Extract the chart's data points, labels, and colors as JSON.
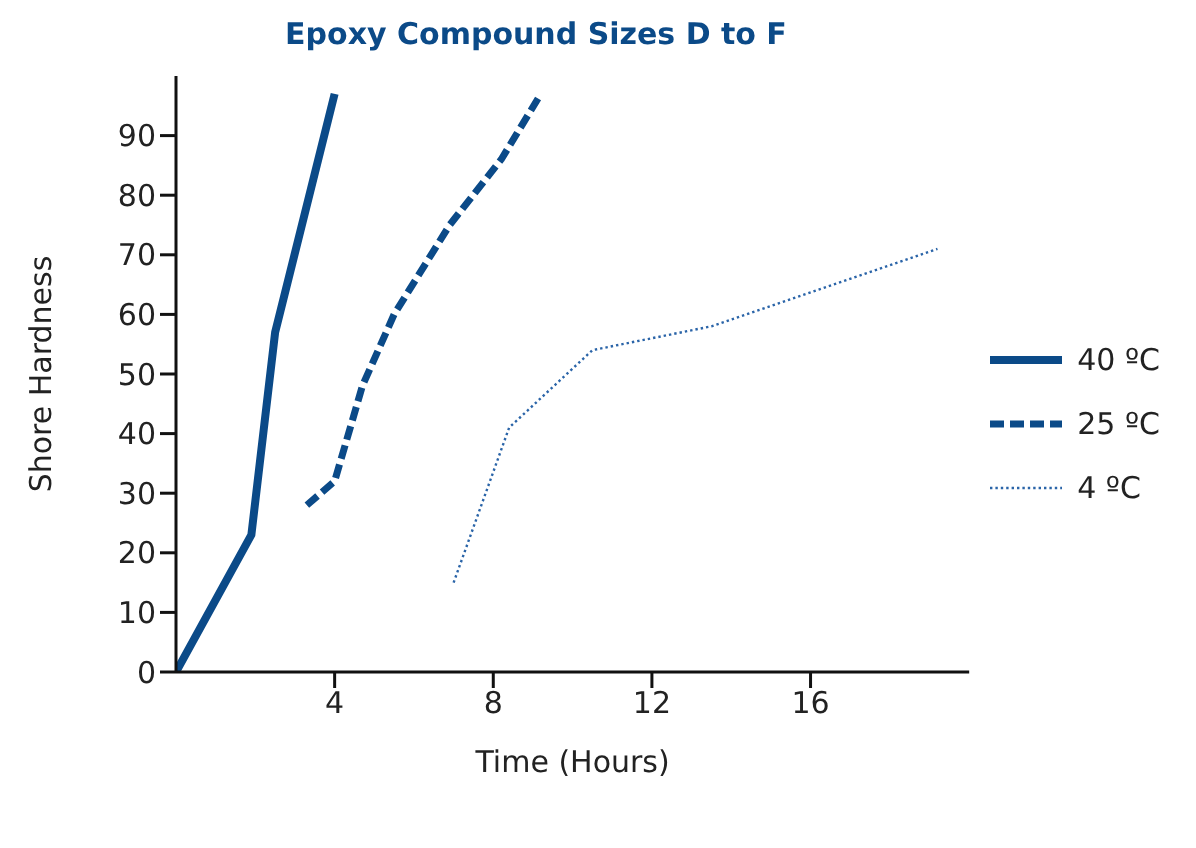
{
  "chart_data": {
    "type": "line",
    "title": "Epoxy Compound Sizes D to F",
    "xlabel": "Time (Hours)",
    "ylabel": "Shore Hardness",
    "xlim": [
      0,
      20
    ],
    "xticks": [
      4,
      8,
      12,
      16
    ],
    "ylim": [
      0,
      100
    ],
    "yticks": [
      0,
      10,
      20,
      30,
      40,
      50,
      60,
      70,
      80,
      90
    ],
    "grid": false,
    "legend": "right",
    "marker": "none",
    "series": [
      {
        "name": "40 ºC",
        "color": "#0b4a88",
        "line_style": "solid",
        "x": [
          0,
          1.9,
          2.5,
          4
        ],
        "values": [
          0,
          23,
          57,
          97
        ]
      },
      {
        "name": "25 ºC",
        "color": "#0b4a88",
        "line_style": "dashed",
        "x": [
          3.3,
          4,
          4.7,
          5.5,
          6.9,
          8.2,
          9.2
        ],
        "values": [
          28,
          32,
          48,
          60,
          75,
          86,
          97
        ]
      },
      {
        "name": "4 ºC",
        "color": "#2a64a8",
        "line_style": "dotted",
        "x": [
          7,
          8.4,
          10.5,
          13.5,
          19.2
        ],
        "values": [
          15,
          41,
          54,
          58,
          71
        ]
      }
    ]
  }
}
